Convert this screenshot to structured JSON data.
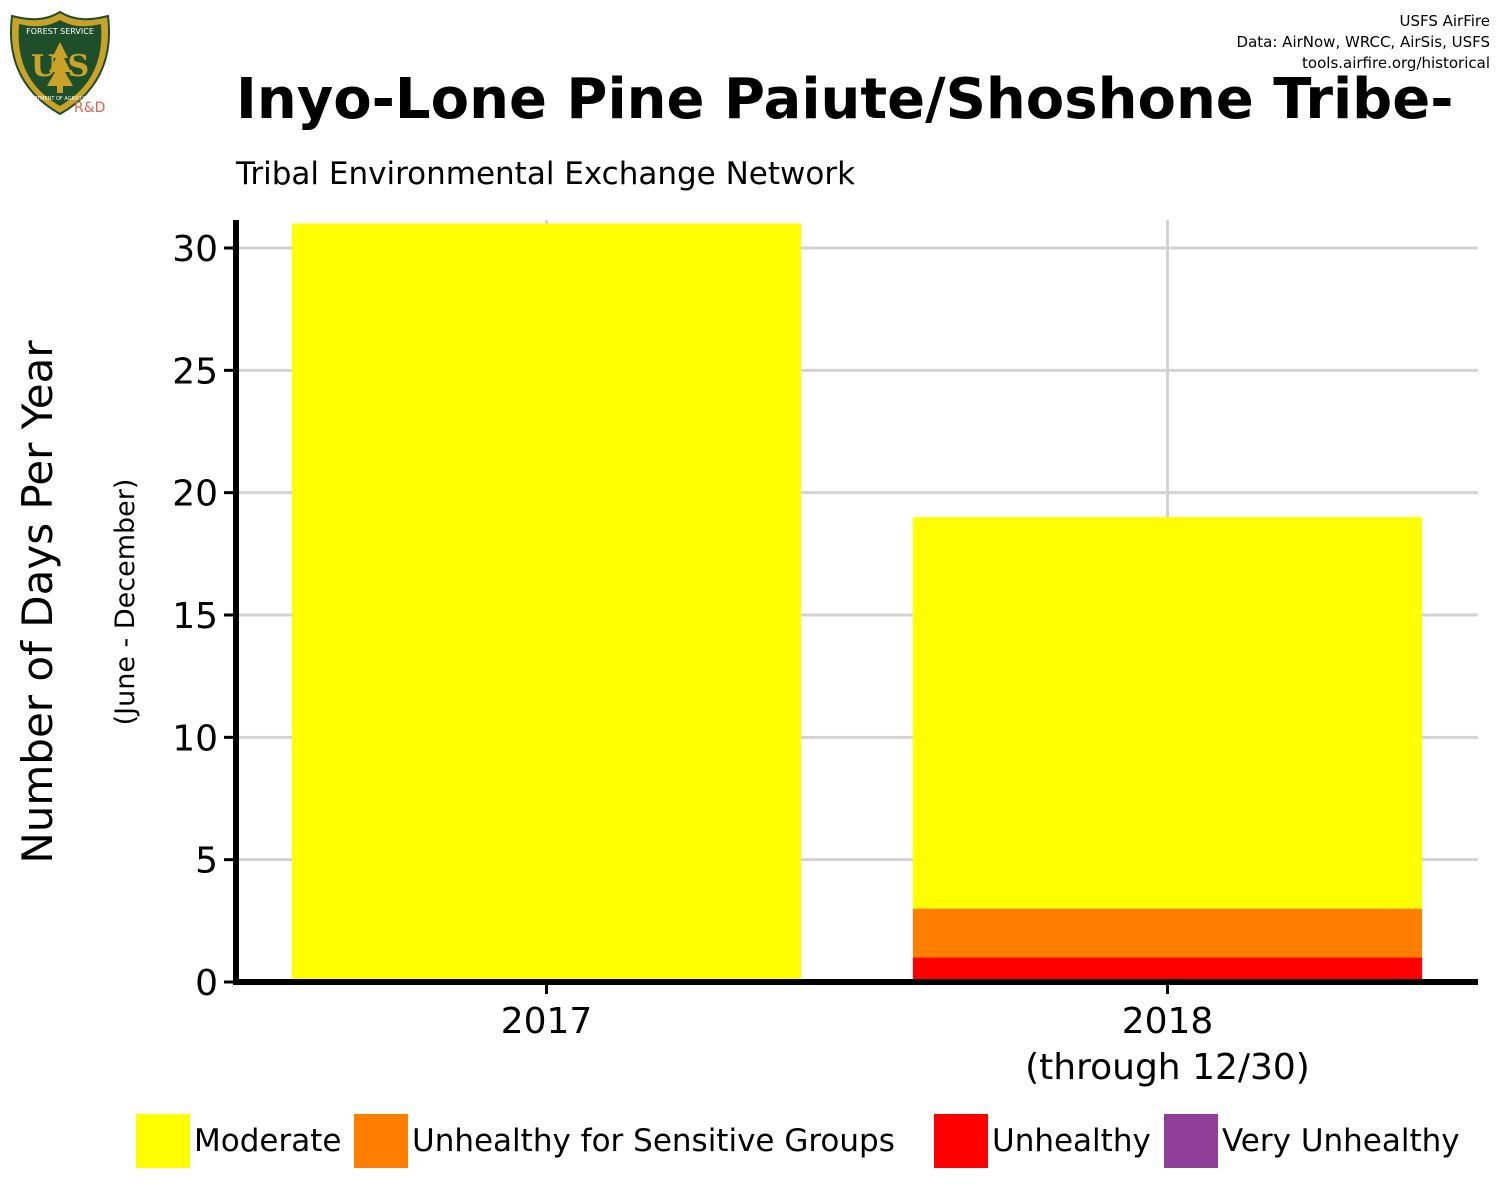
{
  "logo": {
    "badge_text_top": "FOREST SERVICE",
    "badge_text_bottom": "DEPARTMENT OF AGRICULTURE",
    "badge_letters": "U S",
    "rd_label": "R&D"
  },
  "credits": {
    "line1": "USFS AirFire",
    "line2": "Data: AirNow, WRCC, AirSis, USFS",
    "line3": "tools.airfire.org/historical"
  },
  "colors": {
    "Moderate": "#ffff00",
    "Unhealthy for Sensitive Groups": "#ff7e00",
    "Unhealthy": "#ff0000",
    "Very Unhealthy": "#8f3f97",
    "grid": "#d3d3d3",
    "badge_green": "#1f4f2a",
    "badge_gold": "#c9a227",
    "rd_red": "#e8604c"
  },
  "chart_data": {
    "type": "bar",
    "stacked": true,
    "title": "Inyo-Lone Pine Paiute/Shoshone Tribe-",
    "subtitle": "Tribal Environmental Exchange Network",
    "ylabel": "Number of Days Per Year",
    "ylabel_sub": "(June - December)",
    "xlabel": "",
    "ylim": [
      0,
      31
    ],
    "yticks": [
      0,
      5,
      10,
      15,
      20,
      25,
      30
    ],
    "grid": true,
    "legend_position": "bottom",
    "categories": [
      [
        "2017"
      ],
      [
        "2018",
        "(through 12/30)"
      ]
    ],
    "series": [
      {
        "name": "Unhealthy",
        "values": [
          0,
          1
        ]
      },
      {
        "name": "Unhealthy for Sensitive Groups",
        "values": [
          0,
          2
        ]
      },
      {
        "name": "Moderate",
        "values": [
          31,
          16
        ]
      },
      {
        "name": "Very Unhealthy",
        "values": [
          0,
          0
        ]
      }
    ],
    "legend": [
      "Moderate",
      "Unhealthy for Sensitive Groups",
      "Unhealthy",
      "Very Unhealthy"
    ]
  }
}
